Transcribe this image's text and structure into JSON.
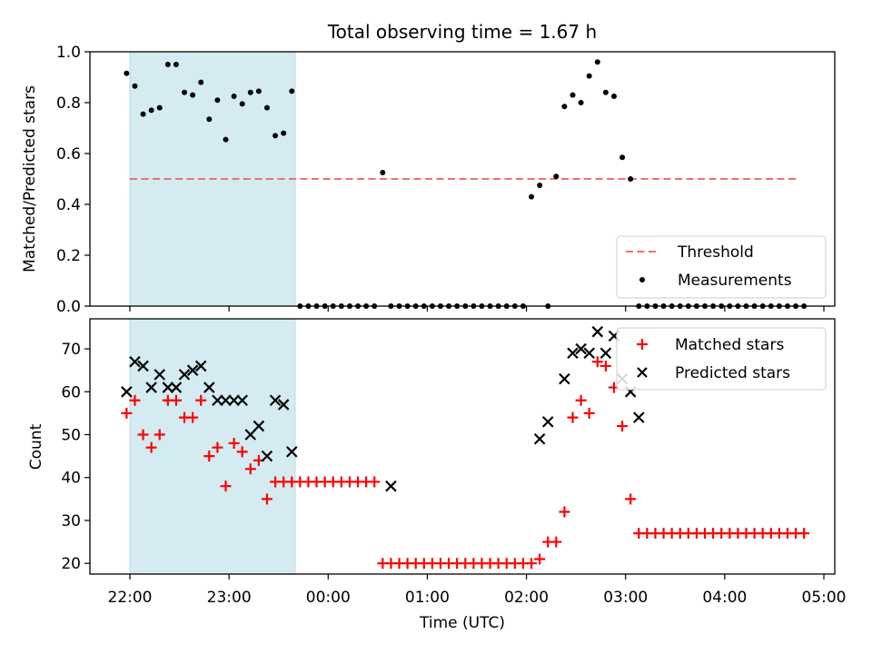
{
  "figure": {
    "title": "Total observing time = 1.67 h"
  },
  "chart_data": [
    {
      "type": "scatter",
      "panel": "top",
      "ylabel": "Matched/Predicted stars",
      "xlabel": "",
      "ylim": [
        0,
        1.0
      ],
      "yticks": [
        0.0,
        0.2,
        0.4,
        0.6,
        0.8,
        1.0
      ],
      "ytick_labels": [
        "0.0",
        "0.2",
        "0.4",
        "0.6",
        "0.8",
        "1.0"
      ],
      "x_unit": "minutes after 22:00 UTC",
      "shaded_region": {
        "from": "22:00",
        "to": "23:40",
        "color": "#d4ebf1"
      },
      "threshold": {
        "name": "Threshold",
        "value": 0.5,
        "from": "22:00",
        "to": "04:45",
        "color": "#f07070"
      },
      "legend": {
        "placement": "bottom-right",
        "entries": [
          "Threshold",
          "Measurements"
        ]
      },
      "series": [
        {
          "name": "Measurements",
          "marker": "dot",
          "color": "#000000",
          "x": [
            "21:58",
            "22:03",
            "22:08",
            "22:13",
            "22:18",
            "22:23",
            "22:28",
            "22:33",
            "22:38",
            "22:43",
            "22:48",
            "22:53",
            "22:58",
            "23:03",
            "23:08",
            "23:13",
            "23:18",
            "23:23",
            "23:28",
            "23:33",
            "23:38",
            "23:43",
            "23:48",
            "23:53",
            "23:58",
            "00:03",
            "00:08",
            "00:13",
            "00:18",
            "00:23",
            "00:28",
            "00:33",
            "00:38",
            "00:43",
            "00:48",
            "00:53",
            "00:58",
            "01:03",
            "01:08",
            "01:13",
            "01:18",
            "01:23",
            "01:28",
            "01:33",
            "01:38",
            "01:43",
            "01:48",
            "01:53",
            "01:58",
            "02:03",
            "02:08",
            "02:13",
            "02:18",
            "02:23",
            "02:28",
            "02:33",
            "02:38",
            "02:43",
            "02:48",
            "02:53",
            "02:58",
            "03:03",
            "03:08",
            "03:13",
            "03:18",
            "03:23",
            "03:28",
            "03:33",
            "03:38",
            "03:43",
            "03:48",
            "03:53",
            "03:58",
            "04:03",
            "04:08",
            "04:13",
            "04:18",
            "04:23",
            "04:28",
            "04:33",
            "04:38",
            "04:43",
            "04:48"
          ],
          "y": [
            0.915,
            0.865,
            0.755,
            0.77,
            0.78,
            0.95,
            0.95,
            0.84,
            0.83,
            0.88,
            0.735,
            0.81,
            0.655,
            0.825,
            0.795,
            0.84,
            0.845,
            0.78,
            0.67,
            0.68,
            0.845,
            0,
            0,
            0,
            0,
            0,
            0,
            0,
            0,
            0,
            0,
            0.525,
            0,
            0,
            0,
            0,
            0,
            0,
            0,
            0,
            0,
            0,
            0,
            0,
            0,
            0,
            0,
            0,
            0,
            0.43,
            0.475,
            0,
            0.51,
            0.785,
            0.83,
            0.8,
            0.905,
            0.96,
            0.84,
            0.825,
            0.585,
            0.5,
            0,
            0,
            0,
            0,
            0,
            0,
            0,
            0,
            0,
            0,
            0,
            0,
            0,
            0,
            0,
            0,
            0,
            0,
            0,
            0,
            0
          ]
        }
      ]
    },
    {
      "type": "scatter",
      "panel": "bottom",
      "ylabel": "Count",
      "xlabel": "Time (UTC)",
      "ylim": [
        17.5,
        77
      ],
      "yticks": [
        20,
        30,
        40,
        50,
        60,
        70
      ],
      "ytick_labels": [
        "20",
        "30",
        "40",
        "50",
        "60",
        "70"
      ],
      "xticks": [
        "22:00",
        "23:00",
        "00:00",
        "01:00",
        "02:00",
        "03:00",
        "04:00",
        "05:00"
      ],
      "x_unit": "minutes after 22:00 UTC",
      "shaded_region": {
        "from": "22:00",
        "to": "23:40",
        "color": "#d4ebf1"
      },
      "legend": {
        "placement": "top-right",
        "entries": [
          "Matched stars",
          "Predicted stars"
        ]
      },
      "series": [
        {
          "name": "Matched stars",
          "marker": "plus",
          "color": "#ff0000",
          "x": [
            "21:58",
            "22:03",
            "22:08",
            "22:13",
            "22:18",
            "22:23",
            "22:28",
            "22:33",
            "22:38",
            "22:43",
            "22:48",
            "22:53",
            "22:58",
            "23:03",
            "23:08",
            "23:13",
            "23:18",
            "23:23",
            "23:28",
            "23:33",
            "23:38",
            "23:43",
            "23:48",
            "23:53",
            "23:58",
            "00:03",
            "00:08",
            "00:13",
            "00:18",
            "00:23",
            "00:28",
            "00:33",
            "00:38",
            "00:43",
            "00:48",
            "00:53",
            "00:58",
            "01:03",
            "01:08",
            "01:13",
            "01:18",
            "01:23",
            "01:28",
            "01:33",
            "01:38",
            "01:43",
            "01:48",
            "01:53",
            "01:58",
            "02:03",
            "02:08",
            "02:13",
            "02:18",
            "02:23",
            "02:28",
            "02:33",
            "02:38",
            "02:43",
            "02:48",
            "02:53",
            "02:58",
            "03:03",
            "03:08",
            "03:13",
            "03:18",
            "03:23",
            "03:28",
            "03:33",
            "03:38",
            "03:43",
            "03:48",
            "03:53",
            "03:58",
            "04:03",
            "04:08",
            "04:13",
            "04:18",
            "04:23",
            "04:28",
            "04:33",
            "04:38",
            "04:43",
            "04:48"
          ],
          "y": [
            55,
            58,
            50,
            47,
            50,
            58,
            58,
            54,
            54,
            58,
            45,
            47,
            38,
            48,
            46,
            42,
            44,
            35,
            39,
            39,
            39,
            39,
            39,
            39,
            39,
            39,
            39,
            39,
            39,
            39,
            39,
            20,
            20,
            20,
            20,
            20,
            20,
            20,
            20,
            20,
            20,
            20,
            20,
            20,
            20,
            20,
            20,
            20,
            20,
            20,
            21,
            25,
            25,
            32,
            54,
            58,
            55,
            67,
            66,
            61,
            52,
            35,
            27,
            27,
            27,
            27,
            27,
            27,
            27,
            27,
            27,
            27,
            27,
            27,
            27,
            27,
            27,
            27,
            27,
            27,
            27,
            27,
            27
          ]
        },
        {
          "name": "Predicted stars",
          "marker": "x",
          "color": "#000000",
          "x": [
            "21:58",
            "22:03",
            "22:08",
            "22:13",
            "22:18",
            "22:23",
            "22:28",
            "22:33",
            "22:38",
            "22:43",
            "22:48",
            "22:53",
            "22:58",
            "23:03",
            "23:08",
            "23:13",
            "23:18",
            "23:23",
            "23:28",
            "23:33",
            "23:38",
            "00:38",
            "02:08",
            "02:13",
            "02:23",
            "02:28",
            "02:33",
            "02:38",
            "02:43",
            "02:48",
            "02:53",
            "02:58",
            "03:03",
            "03:08"
          ],
          "y": [
            60,
            67,
            66,
            61,
            64,
            61,
            61,
            64,
            65,
            66,
            61,
            58,
            58,
            58,
            58,
            50,
            52,
            45,
            58,
            57,
            46,
            38,
            49,
            53,
            63,
            69,
            70,
            69,
            74,
            69,
            73,
            63,
            60,
            54
          ]
        }
      ]
    }
  ]
}
